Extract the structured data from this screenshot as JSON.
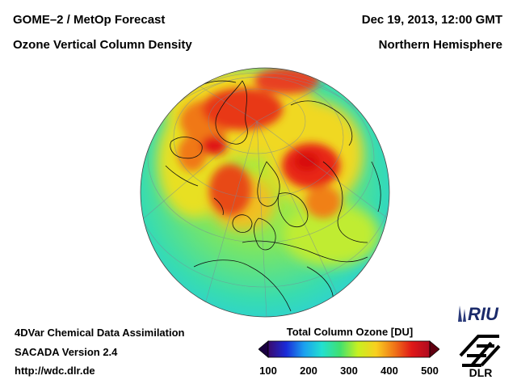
{
  "header": {
    "left_line1": "GOME–2 / MetOp Forecast",
    "left_line2": "Ozone Vertical Column Density",
    "right_line1": "Dec 19, 2013, 12:00 GMT",
    "right_line2": "Northern Hemisphere"
  },
  "footer": {
    "line1": "4DVar Chemical Data Assimilation",
    "line2": "SACADA Version 2.4",
    "line3": "http://wdc.dlr.de"
  },
  "colorbar": {
    "title": "Total Column Ozone [DU]",
    "ticks": [
      "100",
      "200",
      "300",
      "400",
      "500"
    ],
    "min": 100,
    "max": 500,
    "colors": [
      "#3a0a6e",
      "#1a2bd8",
      "#1aa0f0",
      "#22e0d0",
      "#40e070",
      "#c8f020",
      "#f8d020",
      "#f07818",
      "#e01818",
      "#b00a20"
    ]
  },
  "logos": {
    "riu": "RIU",
    "dlr": "DLR"
  },
  "map": {
    "projection": "orthographic",
    "hemisphere": "Northern Hemisphere",
    "background_colors": {
      "low": "#28d8c8",
      "mid": "#8ee860",
      "high": "#d8e020",
      "max": "#e01818"
    }
  }
}
